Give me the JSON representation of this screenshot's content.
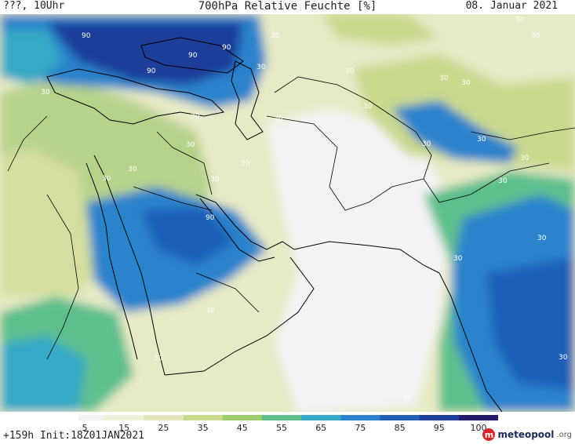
{
  "header": {
    "left": "???, 10Uhr",
    "title": "700hPa Relative Feuchte [%]",
    "date": "08. Januar 2021"
  },
  "footer": {
    "run": "+159h  Init:18Z01JAN2021",
    "logo_text": "meteopool",
    "logo_suffix": ".org"
  },
  "legend": {
    "ticks": [
      "5",
      "15",
      "25",
      "35",
      "45",
      "55",
      "65",
      "75",
      "85",
      "95",
      "100"
    ],
    "colors": [
      "#f2f2f2",
      "#eef0d6",
      "#e2e6b8",
      "#c9d98e",
      "#9ccc6c",
      "#5dbf8e",
      "#35a9c6",
      "#2c83cc",
      "#1f5fb8",
      "#1f3e9a",
      "#231a6b"
    ]
  },
  "map_labels": [
    "90",
    "90",
    "90",
    "90",
    "90",
    "30",
    "30",
    "30",
    "30",
    "30",
    "30",
    "30",
    "30",
    "30",
    "30",
    "30",
    "30",
    "30",
    "30",
    "30",
    "30",
    "30",
    "30",
    "30",
    "30",
    "30",
    "30",
    "30",
    "30",
    "30",
    "30"
  ],
  "colors": {
    "very_dry": "#f2f2f2",
    "dry": "#e2e6b8",
    "moist": "#5dbf8e",
    "wet": "#2c83cc",
    "saturated": "#1f3e9a",
    "coast": "#000000"
  }
}
